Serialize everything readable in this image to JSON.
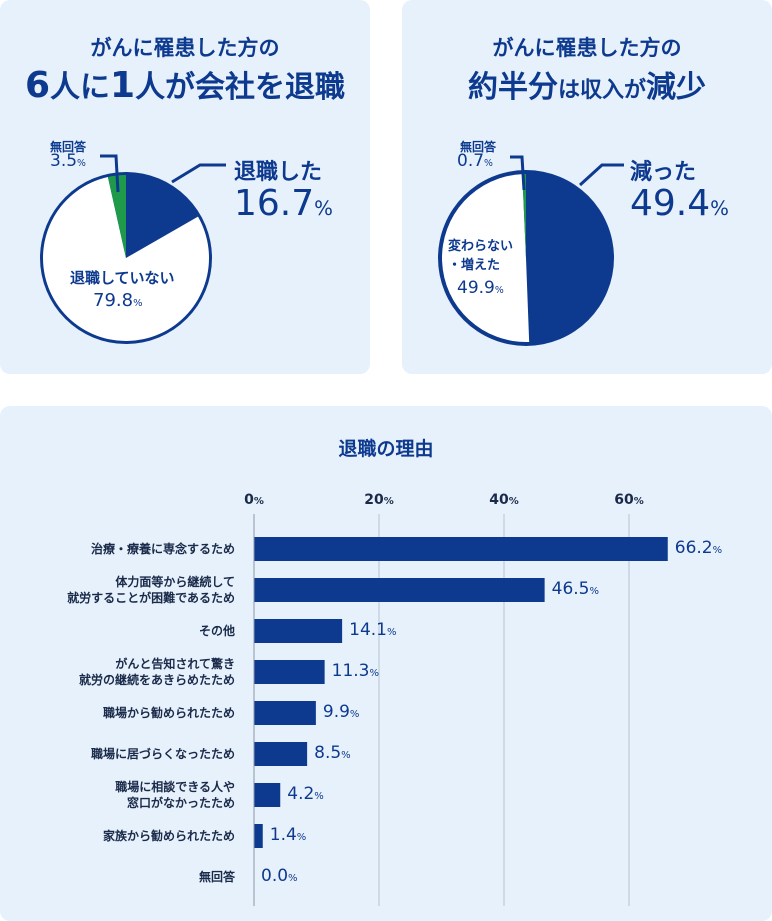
{
  "panel_left": {
    "title_line1": "がんに罹患した方の",
    "title_line2_prefix": "6",
    "title_line2_mid": "人に",
    "title_line2_num": "1",
    "title_line2_suffix": "人が会社を退職",
    "labels": {
      "no_answer": "無回答",
      "no_answer_value": "3.5",
      "retired": "退職した",
      "retired_value": "16.7",
      "not_retired": "退職していない",
      "not_retired_value": "79.8",
      "percent": "%"
    }
  },
  "panel_right": {
    "title_line1": "がんに罹患した方の",
    "title_line2_a": "約半分",
    "title_line2_b": "は収入が",
    "title_line2_c": "減少",
    "labels": {
      "no_answer": "無回答",
      "no_answer_value": "0.7",
      "decreased": "減った",
      "decreased_value": "49.4",
      "unchanged_line1": "変わらない",
      "unchanged_line2": "・増えた",
      "unchanged_value": "49.9",
      "percent": "%"
    }
  },
  "colors": {
    "navy": "#0d3a8f",
    "green": "#1f9a4a",
    "panel_bg": "#e7f1fb",
    "white": "#ffffff"
  },
  "chart_data": [
    {
      "type": "pie",
      "slices": [
        {
          "label": "退職した",
          "value": 16.7
        },
        {
          "label": "退職していない",
          "value": 79.8
        },
        {
          "label": "無回答",
          "value": 3.5
        }
      ]
    },
    {
      "type": "pie",
      "slices": [
        {
          "label": "減った",
          "value": 49.4
        },
        {
          "label": "変わらない・増えた",
          "value": 49.9
        },
        {
          "label": "無回答",
          "value": 0.7
        }
      ]
    },
    {
      "type": "bar",
      "orientation": "horizontal",
      "title": "退職の理由",
      "xlim": [
        0,
        60
      ],
      "xticks": [
        "0",
        "20",
        "40",
        "60"
      ],
      "tick_unit": "%",
      "categories": [
        "治療・療養に専念するため",
        "体力面等から継続して\n就労することが困難であるため",
        "その他",
        "がんと告知されて驚き\n就労の継続をあきらめたため",
        "職場から勧められたため",
        "職場に居づらくなったため",
        "職場に相談できる人や\n窓口がなかったため",
        "家族から勧められたため",
        "無回答"
      ],
      "values": [
        66.2,
        46.5,
        14.1,
        11.3,
        9.9,
        8.5,
        4.2,
        1.4,
        0.0
      ],
      "value_labels": [
        "66.2",
        "46.5",
        "14.1",
        "11.3",
        "9.9",
        "8.5",
        "4.2",
        "1.4",
        "0.0"
      ]
    }
  ]
}
